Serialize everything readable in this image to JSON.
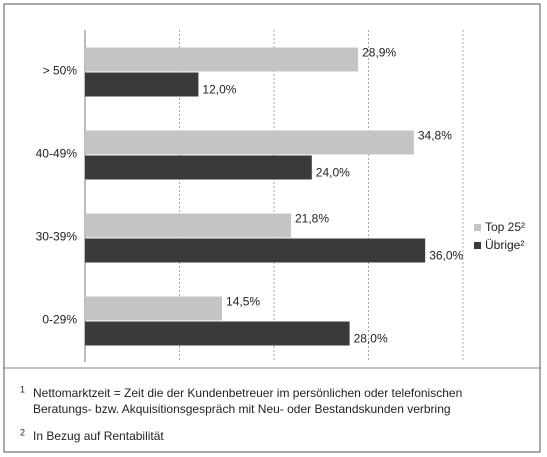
{
  "chart_data": {
    "type": "hbar",
    "categories": [
      "> 50%",
      "40-49%",
      "30-39%",
      "0-29%"
    ],
    "series": [
      {
        "name": "Top 25²",
        "color": "#c4c4c4",
        "values": [
          28.9,
          34.8,
          21.8,
          14.5
        ],
        "value_labels": [
          "28,9%",
          "34,8%",
          "21,8%",
          "14,5%"
        ]
      },
      {
        "name": "Übrige²",
        "color": "#3a3a3a",
        "values": [
          12.0,
          24.0,
          36.0,
          28.0
        ],
        "value_labels": [
          "12,0%",
          "24,0%",
          "36,0%",
          "28,0%"
        ]
      }
    ],
    "xlim": [
      0,
      40
    ],
    "xticks": [
      0,
      10,
      20,
      30,
      40
    ],
    "grid": true,
    "legend": "right",
    "footnotes": [
      {
        "marker": "1",
        "lines": [
          "Nettomarktzeit = Zeit die der Kundenbetreuer im persönlichen oder telefonischen",
          "Beratungs- bzw. Akquisitionsgespräch mit Neu- oder Bestandskunden verbring"
        ]
      },
      {
        "marker": "2",
        "lines": [
          "In Bezug auf Rentabilität"
        ]
      }
    ]
  }
}
